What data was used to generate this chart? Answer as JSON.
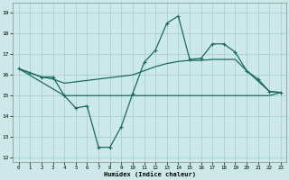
{
  "xlabel": "Humidex (Indice chaleur)",
  "background_color": "#cde8e8",
  "grid_color": "#a0cccc",
  "line_color": "#1a6b5a",
  "x_main": [
    0,
    1,
    2,
    3,
    4,
    5,
    6,
    7,
    8,
    9,
    10,
    11,
    12,
    13,
    14,
    15,
    16,
    17,
    18,
    19,
    20,
    21,
    22,
    23
  ],
  "y_main": [
    16.3,
    16.1,
    15.9,
    15.9,
    15.0,
    14.4,
    14.5,
    12.5,
    12.5,
    13.5,
    15.1,
    16.6,
    17.2,
    18.5,
    18.85,
    16.75,
    16.8,
    17.5,
    17.5,
    17.1,
    16.2,
    15.8,
    15.2,
    15.15
  ],
  "x_flat": [
    0,
    4,
    10,
    22,
    23
  ],
  "y_flat": [
    16.3,
    15.0,
    15.0,
    15.0,
    15.15
  ],
  "x_diag": [
    0,
    1,
    2,
    3,
    4,
    10,
    11,
    12,
    13,
    14,
    15,
    16,
    17,
    18,
    19,
    20,
    21,
    22,
    23
  ],
  "y_diag": [
    16.3,
    16.1,
    15.9,
    15.8,
    15.6,
    16.0,
    16.2,
    16.4,
    16.55,
    16.65,
    16.7,
    16.7,
    16.75,
    16.75,
    16.75,
    16.2,
    15.7,
    15.2,
    15.15
  ],
  "ylim": [
    11.8,
    19.5
  ],
  "yticks": [
    12,
    13,
    14,
    15,
    16,
    17,
    18,
    19
  ],
  "xlim": [
    -0.5,
    23.5
  ],
  "xticks": [
    0,
    1,
    2,
    3,
    4,
    5,
    6,
    7,
    8,
    9,
    10,
    11,
    12,
    13,
    14,
    15,
    16,
    17,
    18,
    19,
    20,
    21,
    22,
    23
  ]
}
